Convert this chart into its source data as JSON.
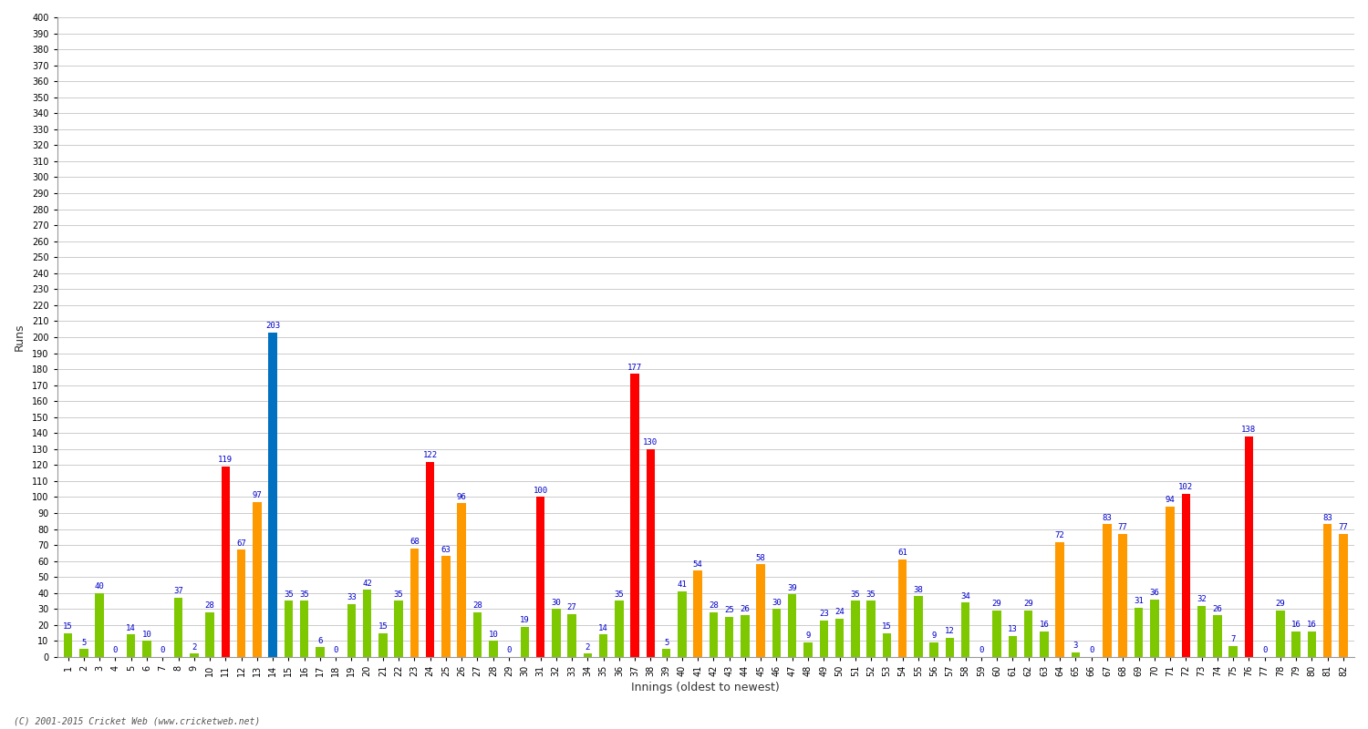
{
  "xlabel": "Innings (oldest to newest)",
  "ylabel": "Runs",
  "ylim": [
    0,
    400
  ],
  "yticks": [
    0,
    10,
    20,
    30,
    40,
    50,
    60,
    70,
    80,
    90,
    100,
    110,
    120,
    130,
    140,
    150,
    160,
    170,
    180,
    190,
    200,
    210,
    220,
    230,
    240,
    250,
    260,
    270,
    280,
    290,
    300,
    310,
    320,
    330,
    340,
    350,
    360,
    370,
    380,
    390,
    400
  ],
  "background_color": "#ffffff",
  "innings": [
    1,
    2,
    3,
    4,
    5,
    6,
    7,
    8,
    9,
    10,
    11,
    12,
    13,
    14,
    15,
    16,
    17,
    18,
    19,
    20,
    21,
    22,
    23,
    24,
    25,
    26,
    27,
    28,
    29,
    30,
    31,
    32,
    33,
    34,
    35,
    36,
    37,
    38,
    39,
    40,
    41,
    42,
    43,
    44,
    45,
    46,
    47,
    48,
    49,
    50,
    51,
    52,
    53,
    54,
    55,
    56,
    57,
    58,
    59,
    60,
    61,
    62,
    63,
    64,
    65,
    66,
    67,
    68,
    69,
    70,
    71,
    72,
    73,
    74,
    75,
    76,
    77,
    78,
    79,
    80,
    81,
    82
  ],
  "values": [
    15,
    5,
    40,
    0,
    14,
    10,
    0,
    37,
    2,
    28,
    119,
    67,
    97,
    203,
    35,
    35,
    6,
    0,
    33,
    42,
    15,
    35,
    68,
    122,
    63,
    96,
    28,
    10,
    0,
    19,
    100,
    30,
    27,
    2,
    14,
    35,
    177,
    130,
    5,
    41,
    54,
    28,
    25,
    26,
    58,
    30,
    39,
    9,
    23,
    24,
    35,
    35,
    15,
    61,
    38,
    9,
    12,
    34,
    0,
    29,
    13,
    29,
    16,
    72,
    3,
    0,
    83,
    77,
    31,
    36,
    94,
    102,
    32,
    26,
    7,
    138,
    0,
    29,
    16,
    16,
    83,
    77
  ],
  "colors": [
    "#7dc800",
    "#7dc800",
    "#7dc800",
    "#7dc800",
    "#7dc800",
    "#7dc800",
    "#7dc800",
    "#7dc800",
    "#7dc800",
    "#7dc800",
    "#ff0000",
    "#ff9900",
    "#ff9900",
    "#0070c0",
    "#7dc800",
    "#7dc800",
    "#7dc800",
    "#7dc800",
    "#7dc800",
    "#7dc800",
    "#7dc800",
    "#7dc800",
    "#ff9900",
    "#ff0000",
    "#ff9900",
    "#ff9900",
    "#7dc800",
    "#7dc800",
    "#7dc800",
    "#7dc800",
    "#ff0000",
    "#7dc800",
    "#7dc800",
    "#7dc800",
    "#7dc800",
    "#7dc800",
    "#ff0000",
    "#ff0000",
    "#7dc800",
    "#7dc800",
    "#ff9900",
    "#7dc800",
    "#7dc800",
    "#7dc800",
    "#ff9900",
    "#7dc800",
    "#7dc800",
    "#7dc800",
    "#7dc800",
    "#7dc800",
    "#7dc800",
    "#7dc800",
    "#7dc800",
    "#ff9900",
    "#7dc800",
    "#7dc800",
    "#7dc800",
    "#7dc800",
    "#7dc800",
    "#7dc800",
    "#7dc800",
    "#7dc800",
    "#7dc800",
    "#ff9900",
    "#7dc800",
    "#7dc800",
    "#ff9900",
    "#ff9900",
    "#7dc800",
    "#7dc800",
    "#ff9900",
    "#ff0000",
    "#7dc800",
    "#7dc800",
    "#7dc800",
    "#ff0000",
    "#7dc800",
    "#7dc800",
    "#7dc800",
    "#7dc800",
    "#ff9900",
    "#ff9900"
  ],
  "label_color": "#0000cc",
  "label_fontsize": 6.5,
  "bar_width": 0.55,
  "grid_color": "#cccccc",
  "tick_label_fontsize": 7,
  "axis_label_fontsize": 9,
  "footer": "(C) 2001-2015 Cricket Web (www.cricketweb.net)"
}
